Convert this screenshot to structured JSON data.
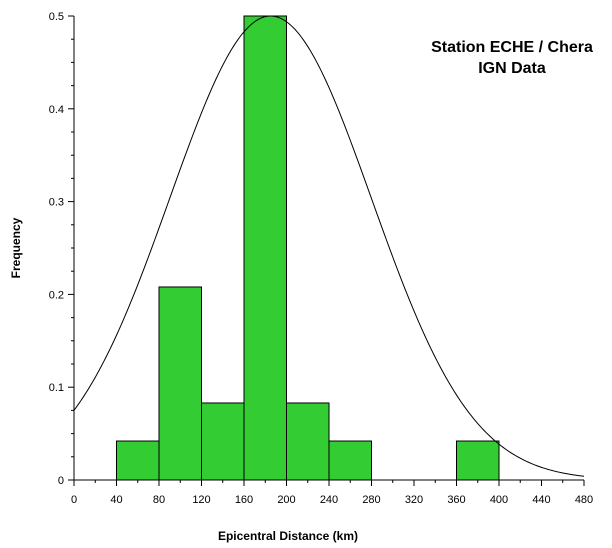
{
  "chart_data": {
    "type": "bar",
    "title_line1": "Station ECHE / Chera",
    "title_line2": "IGN Data",
    "xlabel": "Epicentral Distance (km)",
    "ylabel": "Frequency",
    "xlim": [
      0,
      480
    ],
    "ylim": [
      0,
      0.5
    ],
    "x_ticks": [
      0,
      40,
      80,
      120,
      160,
      200,
      240,
      280,
      320,
      360,
      400,
      440,
      480
    ],
    "y_ticks": [
      0,
      0.1,
      0.2,
      0.3,
      0.4,
      0.5
    ],
    "y_tick_labels": [
      "0",
      "0.1",
      "0.2",
      "0.3",
      "0.4",
      "0.5"
    ],
    "bins": [
      {
        "from": 40,
        "to": 80,
        "value": 0.042
      },
      {
        "from": 80,
        "to": 120,
        "value": 0.208
      },
      {
        "from": 120,
        "to": 160,
        "value": 0.083
      },
      {
        "from": 160,
        "to": 200,
        "value": 0.5
      },
      {
        "from": 200,
        "to": 240,
        "value": 0.083
      },
      {
        "from": 240,
        "to": 280,
        "value": 0.042
      },
      {
        "from": 360,
        "to": 400,
        "value": 0.042
      }
    ],
    "normal_curve": {
      "mean": 185,
      "sd": 95,
      "peak": 0.5
    },
    "bar_color": "#33cc33",
    "bar_edge_color": "#000000",
    "grid": false
  }
}
